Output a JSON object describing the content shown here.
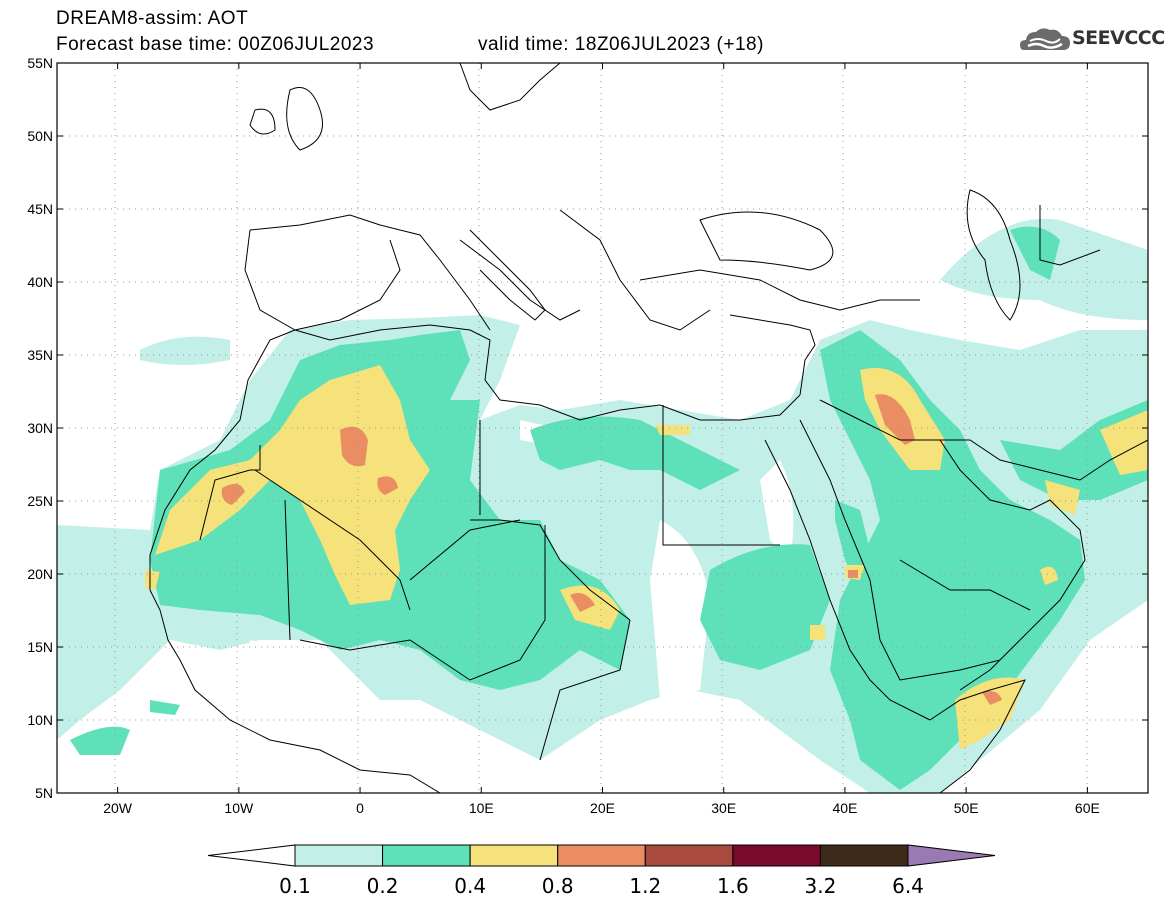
{
  "header": {
    "model_line": "DREAM8-assim: AOT",
    "base_time": "Forecast base time: 00Z06JUL2023",
    "valid_time": "valid time: 18Z06JUL2023 (+18)"
  },
  "logo": {
    "text": "SEEVCCC",
    "icon": "cloud-logo-icon"
  },
  "map": {
    "lat_labels": [
      "55N",
      "50N",
      "45N",
      "40N",
      "35N",
      "30N",
      "25N",
      "20N",
      "15N",
      "10N",
      "5N"
    ],
    "lon_labels": [
      "20W",
      "10W",
      "0",
      "10E",
      "20E",
      "30E",
      "40E",
      "50E",
      "60E"
    ],
    "lat_values": [
      55,
      50,
      45,
      40,
      35,
      30,
      25,
      20,
      15,
      10,
      5
    ],
    "lon_values": [
      -20,
      -10,
      0,
      10,
      20,
      30,
      40,
      50,
      60
    ],
    "lon_range": [
      -25,
      65
    ],
    "lat_range": [
      5,
      55
    ],
    "grid": "dotted"
  },
  "colorbar": {
    "labels": [
      "0.1",
      "0.2",
      "0.4",
      "0.8",
      "1.2",
      "1.6",
      "3.2",
      "6.4"
    ],
    "colors": [
      "#ffffff",
      "#c2f0e8",
      "#5ee0b8",
      "#f5e27a",
      "#eb8d62",
      "#a84b3e",
      "#7a0a2e",
      "#3d2a1a",
      "#9b79b3"
    ]
  }
}
